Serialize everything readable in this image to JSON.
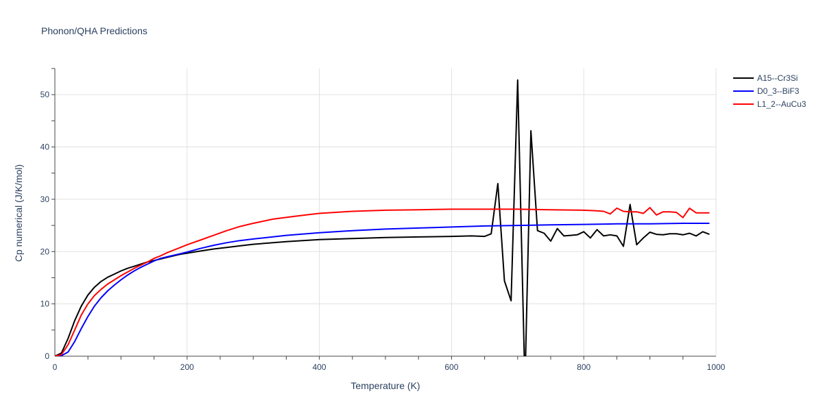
{
  "chart_data": {
    "type": "line",
    "title": "Phonon/QHA Predictions",
    "xlabel": "Temperature (K)",
    "ylabel": "Cp numerical (J/K/mol)",
    "xlim": [
      0,
      1000
    ],
    "ylim": [
      0,
      55
    ],
    "xticks": [
      0,
      200,
      400,
      600,
      800,
      1000
    ],
    "yticks": [
      0,
      10,
      20,
      30,
      40,
      50
    ],
    "grid": true,
    "legend_position": "top-right",
    "series": [
      {
        "name": "A15--Cr3Si",
        "color": "#000000",
        "x": [
          0,
          10,
          20,
          30,
          40,
          50,
          60,
          70,
          80,
          90,
          100,
          110,
          120,
          130,
          140,
          150,
          160,
          170,
          180,
          190,
          200,
          210,
          220,
          230,
          240,
          260,
          280,
          300,
          350,
          400,
          450,
          500,
          550,
          600,
          630,
          650,
          660,
          670,
          680,
          690,
          700,
          710,
          712,
          720,
          730,
          740,
          750,
          760,
          770,
          780,
          790,
          800,
          810,
          820,
          830,
          840,
          850,
          860,
          870,
          880,
          890,
          900,
          910,
          920,
          930,
          940,
          950,
          960,
          970,
          980,
          990
        ],
        "y": [
          0,
          0.6,
          3.4,
          6.8,
          9.6,
          11.7,
          13.2,
          14.3,
          15.1,
          15.7,
          16.3,
          16.8,
          17.2,
          17.6,
          18.0,
          18.3,
          18.6,
          18.9,
          19.2,
          19.5,
          19.7,
          19.9,
          20.1,
          20.3,
          20.5,
          20.8,
          21.1,
          21.4,
          21.9,
          22.3,
          22.5,
          22.7,
          22.8,
          22.9,
          23.0,
          22.9,
          23.4,
          33.0,
          14.4,
          10.6,
          52.8,
          0,
          0,
          43.1,
          24.0,
          23.5,
          22.0,
          24.4,
          23.0,
          23.1,
          23.2,
          23.8,
          22.6,
          24.2,
          23.0,
          23.2,
          23.0,
          21.0,
          29.0,
          21.3,
          22.6,
          23.7,
          23.3,
          23.2,
          23.4,
          23.4,
          23.2,
          23.5,
          23.0,
          23.8,
          23.3
        ]
      },
      {
        "name": "D0_3--BiF3",
        "color": "#0000ff",
        "x": [
          0,
          10,
          20,
          30,
          40,
          50,
          60,
          70,
          80,
          90,
          100,
          110,
          120,
          130,
          140,
          150,
          160,
          170,
          180,
          190,
          200,
          220,
          240,
          260,
          280,
          300,
          350,
          400,
          450,
          500,
          550,
          600,
          650,
          700,
          750,
          800,
          850,
          900,
          950,
          990
        ],
        "y": [
          0,
          0.1,
          0.8,
          2.8,
          5.3,
          7.6,
          9.6,
          11.2,
          12.5,
          13.6,
          14.6,
          15.5,
          16.3,
          17.0,
          17.6,
          18.2,
          18.7,
          19.0,
          19.3,
          19.6,
          19.9,
          20.6,
          21.2,
          21.7,
          22.1,
          22.4,
          23.1,
          23.6,
          24.0,
          24.3,
          24.5,
          24.7,
          24.9,
          25.0,
          25.1,
          25.2,
          25.3,
          25.3,
          25.4,
          25.4
        ]
      },
      {
        "name": "L1_2--AuCu3",
        "color": "#ff0000",
        "x": [
          0,
          10,
          20,
          30,
          40,
          50,
          60,
          70,
          80,
          90,
          100,
          110,
          120,
          130,
          140,
          150,
          160,
          170,
          180,
          190,
          200,
          220,
          240,
          260,
          280,
          300,
          330,
          360,
          380,
          400,
          450,
          500,
          550,
          600,
          650,
          700,
          750,
          800,
          820,
          830,
          840,
          850,
          860,
          870,
          880,
          890,
          900,
          910,
          920,
          930,
          940,
          950,
          960,
          970,
          980,
          990
        ],
        "y": [
          0,
          0.3,
          2.2,
          5.0,
          7.9,
          10.0,
          11.6,
          12.8,
          13.8,
          14.6,
          15.4,
          16.1,
          16.8,
          17.4,
          18.0,
          18.7,
          19.2,
          19.8,
          20.3,
          20.8,
          21.3,
          22.2,
          23.1,
          24.0,
          24.8,
          25.4,
          26.2,
          26.7,
          27.0,
          27.3,
          27.7,
          27.9,
          28.0,
          28.1,
          28.1,
          28.1,
          28.0,
          27.9,
          27.8,
          27.7,
          27.2,
          28.3,
          27.7,
          27.6,
          27.6,
          27.3,
          28.4,
          27.0,
          27.6,
          27.6,
          27.5,
          26.5,
          28.3,
          27.4,
          27.4,
          27.4
        ]
      }
    ]
  }
}
